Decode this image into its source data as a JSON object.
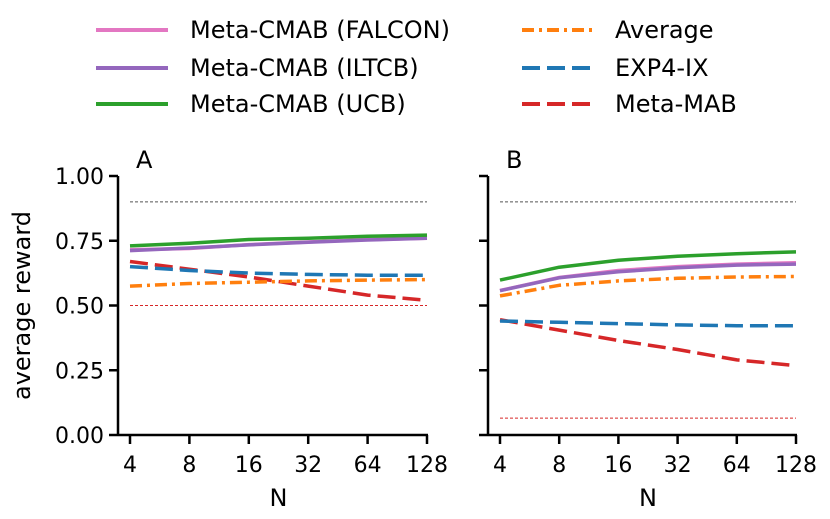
{
  "chart_data": {
    "type": "line",
    "legend": {
      "placement": "top",
      "entries": [
        {
          "key": "falcon",
          "label": "Meta-CMAB (FALCON)",
          "color": "#e377c2",
          "dash": "solid"
        },
        {
          "key": "iltcb",
          "label": "Meta-CMAB (ILTCB)",
          "color": "#9467bd",
          "dash": "solid"
        },
        {
          "key": "ucb",
          "label": "Meta-CMAB (UCB)",
          "color": "#2ca02c",
          "dash": "solid"
        },
        {
          "key": "average",
          "label": "Average",
          "color": "#ff7f0e",
          "dash": "dashdot"
        },
        {
          "key": "exp4",
          "label": "EXP4-IX",
          "color": "#1f77b4",
          "dash": "dashed"
        },
        {
          "key": "metamab",
          "label": "Meta-MAB",
          "color": "#d62728",
          "dash": "dashed"
        }
      ]
    },
    "x": [
      "4",
      "8",
      "16",
      "32",
      "64",
      "128"
    ],
    "xlabel": "N",
    "ylabel": "average reward",
    "ylim": [
      0,
      1
    ],
    "yticks": [
      "0.00",
      "0.25",
      "0.50",
      "0.75",
      "1.00"
    ],
    "panels": [
      {
        "label": "A",
        "show_ylabel": true,
        "reference_lines": [
          {
            "value": 0.9,
            "color": "#555555"
          },
          {
            "value": 0.5,
            "color": "#d62728"
          }
        ],
        "series": [
          {
            "key": "metamab",
            "values": [
              0.67,
              0.64,
              0.61,
              0.575,
              0.54,
              0.52
            ]
          },
          {
            "key": "exp4",
            "values": [
              0.65,
              0.635,
              0.625,
              0.62,
              0.617,
              0.617
            ]
          },
          {
            "key": "average",
            "values": [
              0.575,
              0.585,
              0.59,
              0.595,
              0.598,
              0.6
            ]
          },
          {
            "key": "falcon",
            "values": [
              0.715,
              0.72,
              0.735,
              0.745,
              0.755,
              0.76
            ]
          },
          {
            "key": "iltcb",
            "values": [
              0.712,
              0.722,
              0.734,
              0.744,
              0.753,
              0.76
            ]
          },
          {
            "key": "ucb",
            "values": [
              0.73,
              0.74,
              0.755,
              0.76,
              0.767,
              0.772
            ]
          }
        ]
      },
      {
        "label": "B",
        "show_ylabel": false,
        "reference_lines": [
          {
            "value": 0.9,
            "color": "#555555"
          },
          {
            "value": 0.065,
            "color": "#d62728"
          }
        ],
        "series": [
          {
            "key": "metamab",
            "values": [
              0.445,
              0.405,
              0.365,
              0.33,
              0.29,
              0.268
            ]
          },
          {
            "key": "exp4",
            "values": [
              0.44,
              0.435,
              0.43,
              0.425,
              0.422,
              0.422
            ]
          },
          {
            "key": "average",
            "values": [
              0.537,
              0.578,
              0.595,
              0.605,
              0.61,
              0.612
            ]
          },
          {
            "key": "falcon",
            "values": [
              0.558,
              0.608,
              0.635,
              0.65,
              0.66,
              0.665
            ]
          },
          {
            "key": "iltcb",
            "values": [
              0.557,
              0.607,
              0.63,
              0.646,
              0.656,
              0.66
            ]
          },
          {
            "key": "ucb",
            "values": [
              0.598,
              0.648,
              0.675,
              0.69,
              0.7,
              0.707
            ]
          }
        ]
      }
    ]
  }
}
